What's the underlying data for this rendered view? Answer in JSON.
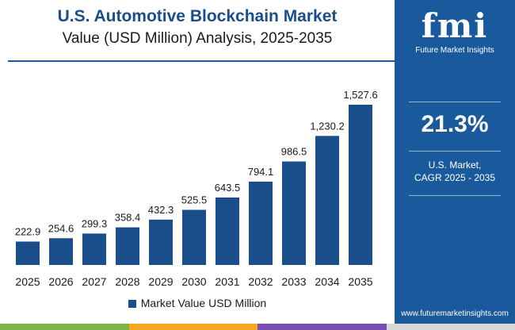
{
  "colors": {
    "bar": "#1a4e8a",
    "sidebar": "#1a5a9c",
    "bottom_bar": [
      "#7ab648",
      "#f5a623",
      "#7a4fb5",
      "#d8d8d8"
    ]
  },
  "logo": {
    "text": "fmi",
    "name": "Future Market Insights"
  },
  "sidebar": {
    "cagr_value": "21.3%",
    "cagr_label_line1": "U.S. Market,",
    "cagr_label_line2": "CAGR 2025 - 2035",
    "website": "www.futuremarketinsights.com"
  },
  "chart_data": {
    "type": "bar",
    "title": "U.S. Automotive Blockchain Market",
    "subtitle": "Value (USD Million) Analysis, 2025-2035",
    "categories": [
      "2025",
      "2026",
      "2027",
      "2028",
      "2029",
      "2030",
      "2031",
      "2032",
      "2033",
      "2034",
      "2035"
    ],
    "values": [
      222.9,
      254.6,
      299.3,
      358.4,
      432.3,
      525.5,
      643.5,
      794.1,
      986.5,
      1230.2,
      1527.6
    ],
    "value_labels": [
      "222.9",
      "254.6",
      "299.3",
      "358.4",
      "432.3",
      "525.5",
      "643.5",
      "794.1",
      "986.5",
      "1,230.2",
      "1,527.6"
    ],
    "series_name": "Market Value USD Million",
    "xlabel": "",
    "ylabel": "",
    "ylim": [
      0,
      1527.6
    ],
    "grid": false,
    "legend_position": "bottom-center"
  }
}
